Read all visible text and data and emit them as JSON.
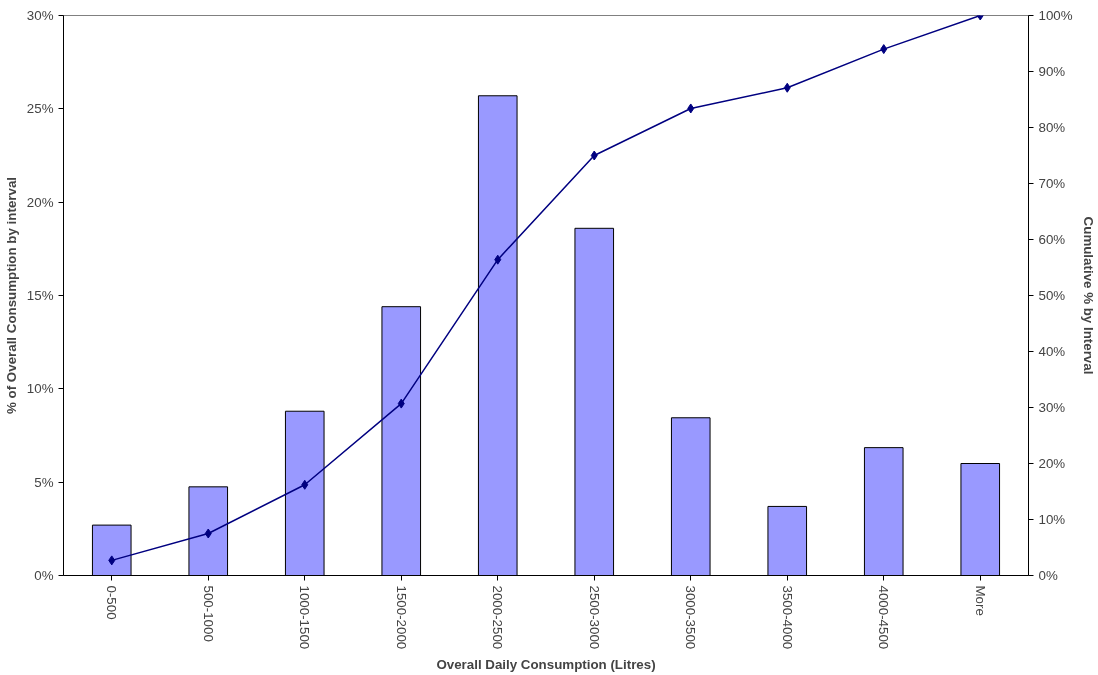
{
  "chart_data": {
    "type": "bar",
    "xlabel": "Overall Daily Consumption (Litres)",
    "ylabel": "% of Overall Consumption by interval",
    "y2label": "Cumulative % by Interval",
    "categories": [
      "0-500",
      "500-1000",
      "1000-1500",
      "1500-2000",
      "2000-2500",
      "2500-3000",
      "3000-3500",
      "3500-4000",
      "4000-4500",
      "More"
    ],
    "series": [
      {
        "color": "#9999ff",
        "values": [
          2.7,
          4.75,
          8.8,
          14.4,
          25.7,
          18.6,
          8.45,
          3.7,
          6.85,
          6.0
        ]
      },
      {
        "type": "line",
        "axis": "y2",
        "color": "#000080",
        "marker": "diamond",
        "values": [
          2.7,
          7.5,
          16.2,
          30.7,
          56.4,
          75.0,
          83.4,
          87.1,
          94.0,
          100
        ]
      }
    ],
    "ylim": [
      0,
      30
    ],
    "yticks": [
      {
        "value": 0,
        "label": "0%"
      },
      {
        "value": 5,
        "label": "5%"
      },
      {
        "value": 10,
        "label": "10%"
      },
      {
        "value": 15,
        "label": "15%"
      },
      {
        "value": 20,
        "label": "20%"
      },
      {
        "value": 25,
        "label": "25%"
      },
      {
        "value": 30,
        "label": "30%"
      }
    ],
    "y2lim": [
      0,
      100
    ],
    "y2ticks": [
      {
        "value": 0,
        "label": "0%"
      },
      {
        "value": 10,
        "label": "10%"
      },
      {
        "value": 20,
        "label": "20%"
      },
      {
        "value": 30,
        "label": "30%"
      },
      {
        "value": 40,
        "label": "40%"
      },
      {
        "value": 50,
        "label": "50%"
      },
      {
        "value": 60,
        "label": "60%"
      },
      {
        "value": 70,
        "label": "70%"
      },
      {
        "value": 80,
        "label": "80%"
      },
      {
        "value": 90,
        "label": "90%"
      },
      {
        "value": 100,
        "label": "100%"
      }
    ],
    "grid": false
  }
}
